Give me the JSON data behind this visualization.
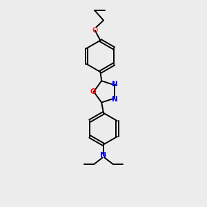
{
  "bg_color": "#ececec",
  "bond_color": "#000000",
  "N_color": "#0000ff",
  "O_color": "#ff0000",
  "line_width": 1.4,
  "figsize": [
    3.0,
    3.0
  ],
  "dpi": 100,
  "xlim": [
    0,
    10
  ],
  "ylim": [
    0,
    13
  ]
}
